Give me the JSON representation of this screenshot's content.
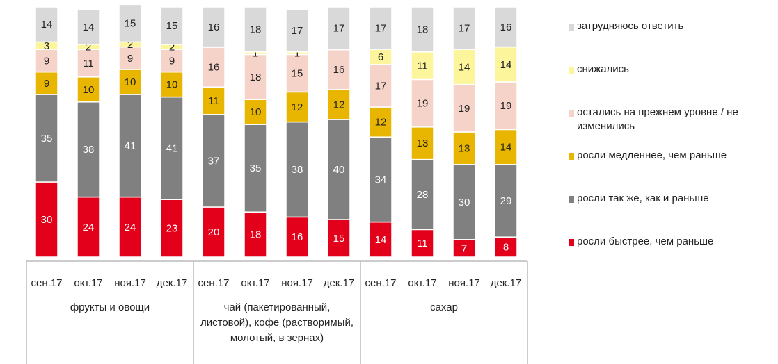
{
  "chart_data": {
    "type": "stacked-bar",
    "categories": [
      "сен.17",
      "окт.17",
      "ноя.17",
      "дек.17",
      "сен.17",
      "окт.17",
      "ноя.17",
      "дек.17",
      "сен.17",
      "окт.17",
      "ноя.17",
      "дек.17"
    ],
    "groups": [
      {
        "name": "фрукты и овощи",
        "size": 4
      },
      {
        "name": "чай (пакетированный, листовой), кофе (растворимый, молотый, в зернах)",
        "size": 4
      },
      {
        "name": "сахар",
        "size": 4
      }
    ],
    "series": [
      {
        "name": "росли быстрее, чем раньше",
        "color": "#e2001a",
        "label_color": "#ffffff",
        "values": [
          30,
          24,
          24,
          23,
          20,
          18,
          16,
          15,
          14,
          11,
          7,
          8
        ]
      },
      {
        "name": "росли так же, как и раньше",
        "color": "#808080",
        "label_color": "#ffffff",
        "values": [
          35,
          38,
          41,
          41,
          37,
          35,
          38,
          40,
          34,
          28,
          30,
          29
        ]
      },
      {
        "name": "росли медленнее, чем раньше",
        "color": "#e8b500",
        "label_color": "#222222",
        "values": [
          9,
          10,
          10,
          10,
          11,
          10,
          12,
          12,
          12,
          13,
          13,
          14
        ]
      },
      {
        "name": "остались на прежнем уровне / не изменились",
        "color": "#f6d3c9",
        "label_color": "#222222",
        "values": [
          9,
          11,
          9,
          9,
          16,
          18,
          15,
          16,
          17,
          19,
          19,
          19
        ]
      },
      {
        "name": "снижались",
        "color": "#fdf59c",
        "label_color": "#222222",
        "values": [
          3,
          2,
          2,
          2,
          0,
          1,
          1,
          0,
          6,
          11,
          14,
          14
        ]
      },
      {
        "name": "затрудняюсь ответить",
        "color": "#d9d9d9",
        "label_color": "#222222",
        "values": [
          14,
          14,
          15,
          15,
          16,
          18,
          17,
          17,
          17,
          18,
          17,
          16
        ]
      }
    ]
  }
}
